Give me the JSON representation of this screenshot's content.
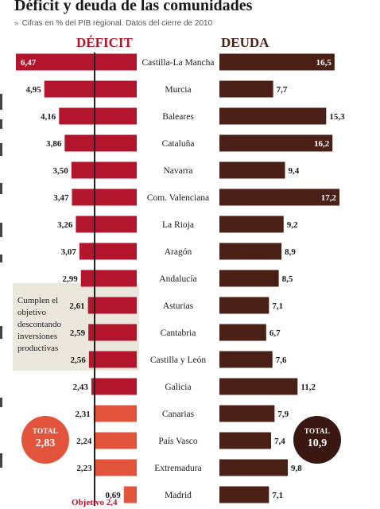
{
  "title": "Déficit y deuda de las comunidades",
  "subtitle": "Cifras en % del PIB regional. Datos del cierre de 2010",
  "deficit_heading": "DÉFICIT",
  "debt_heading": "DEUDA",
  "highlight_note": "Cumplen el objetivo descontando inversiones productivas",
  "objective_label": "Objetivo 2,4",
  "total_deficit": {
    "label": "TOTAL",
    "value": "2,83"
  },
  "total_debt": {
    "label": "TOTAL",
    "value": "10,9"
  },
  "colors": {
    "deficit_over": "#b3162c",
    "deficit_under": "#e2543c",
    "debt": "#4a1f16",
    "highlight_box": "#ebe7dc"
  },
  "chart_data": {
    "type": "bar",
    "categories": [
      "Castilla-La Mancha",
      "Murcia",
      "Baleares",
      "Cataluña",
      "Navarra",
      "Com. Valenciana",
      "La Rioja",
      "Aragón",
      "Andalucía",
      "Asturias",
      "Cantabria",
      "Castilla y León",
      "Galicia",
      "Canarias",
      "País Vasco",
      "Extremadura",
      "Madrid"
    ],
    "deficit": [
      6.47,
      4.95,
      4.16,
      3.86,
      3.5,
      3.47,
      3.26,
      3.07,
      2.99,
      2.61,
      2.59,
      2.56,
      2.43,
      2.31,
      2.24,
      2.23,
      0.69
    ],
    "deficit_labels": [
      "6,47",
      "4,95",
      "4,16",
      "3,86",
      "3,50",
      "3,47",
      "3,26",
      "3,07",
      "2,99",
      "2,61",
      "2,59",
      "2,56",
      "2,43",
      "2,31",
      "2,24",
      "2,23",
      "0,69"
    ],
    "debt": [
      16.5,
      7.7,
      15.3,
      16.2,
      9.4,
      17.2,
      9.2,
      8.9,
      8.5,
      7.1,
      6.7,
      7.6,
      11.2,
      7.9,
      7.4,
      9.8,
      7.1
    ],
    "debt_labels": [
      "16,5",
      "7,7",
      "15,3",
      "16,2",
      "9,4",
      "17,2",
      "9,2",
      "8,9",
      "8,5",
      "7,1",
      "6,7",
      "7,6",
      "11,2",
      "7,9",
      "7,4",
      "9,8",
      "7,1"
    ],
    "objective": 2.4
  }
}
